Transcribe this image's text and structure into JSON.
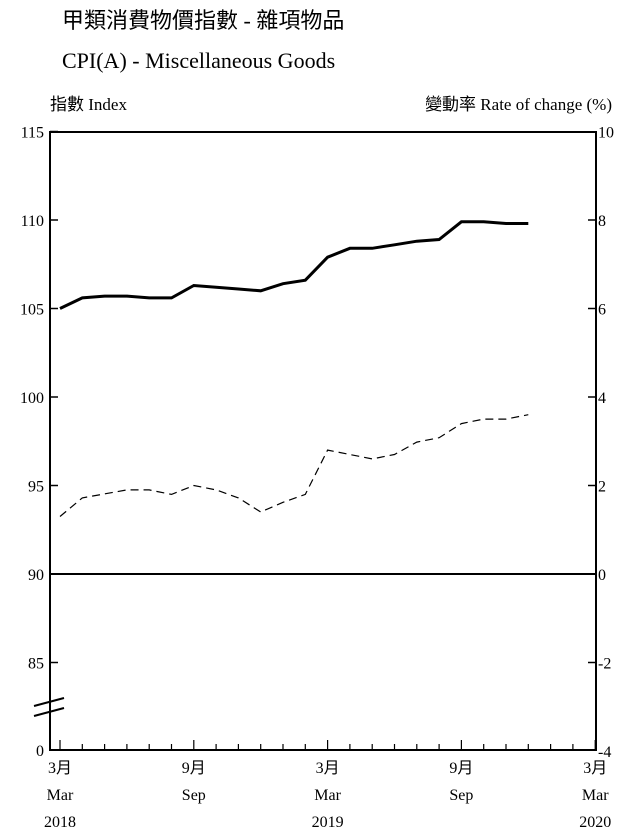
{
  "chart_data": {
    "type": "line",
    "title": "甲類消費物價指數 - 雜項物品",
    "subtitle": "CPI(A) - Miscellaneous Goods",
    "ylabel_left": "指數 Index",
    "ylabel_right": "變動率 Rate of change (%)",
    "left_axis": {
      "ticks": [
        "115",
        "110",
        "105",
        "100",
        "95",
        "90",
        "85",
        "0"
      ],
      "values": [
        115,
        110,
        105,
        100,
        95,
        90,
        85
      ]
    },
    "right_axis": {
      "ticks": [
        "10",
        "8",
        "6",
        "4",
        "2",
        "0",
        "-2",
        "-4"
      ],
      "values": [
        10,
        8,
        6,
        4,
        2,
        0,
        -2,
        -4
      ]
    },
    "x_tick_labels": [
      {
        "zh": "3月",
        "en": "Mar",
        "year": "2018"
      },
      {
        "zh": "9月",
        "en": "Sep",
        "year": ""
      },
      {
        "zh": "3月",
        "en": "Mar",
        "year": "2019"
      },
      {
        "zh": "9月",
        "en": "Sep",
        "year": ""
      },
      {
        "zh": "3月",
        "en": "Mar",
        "year": "2020"
      }
    ],
    "x": [
      "2018-03",
      "2018-04",
      "2018-05",
      "2018-06",
      "2018-07",
      "2018-08",
      "2018-09",
      "2018-10",
      "2018-11",
      "2018-12",
      "2019-01",
      "2019-02",
      "2019-03",
      "2019-04",
      "2019-05",
      "2019-06",
      "2019-07",
      "2019-08",
      "2019-09",
      "2019-10",
      "2019-11",
      "2019-12"
    ],
    "series": [
      {
        "axis": "left",
        "style": "solid",
        "values": [
          105.0,
          105.6,
          105.7,
          105.7,
          105.6,
          105.6,
          106.3,
          106.2,
          106.1,
          106.0,
          106.4,
          106.6,
          107.9,
          108.4,
          108.4,
          108.6,
          108.8,
          108.9,
          109.9,
          109.9,
          109.8,
          109.8
        ]
      },
      {
        "axis": "right",
        "style": "dashed",
        "values": [
          1.3,
          1.72,
          1.81,
          1.9,
          1.9,
          1.8,
          2.0,
          1.9,
          1.72,
          1.4,
          1.62,
          1.8,
          2.8,
          2.7,
          2.6,
          2.7,
          2.98,
          3.08,
          3.4,
          3.5,
          3.5,
          3.6
        ]
      }
    ]
  }
}
